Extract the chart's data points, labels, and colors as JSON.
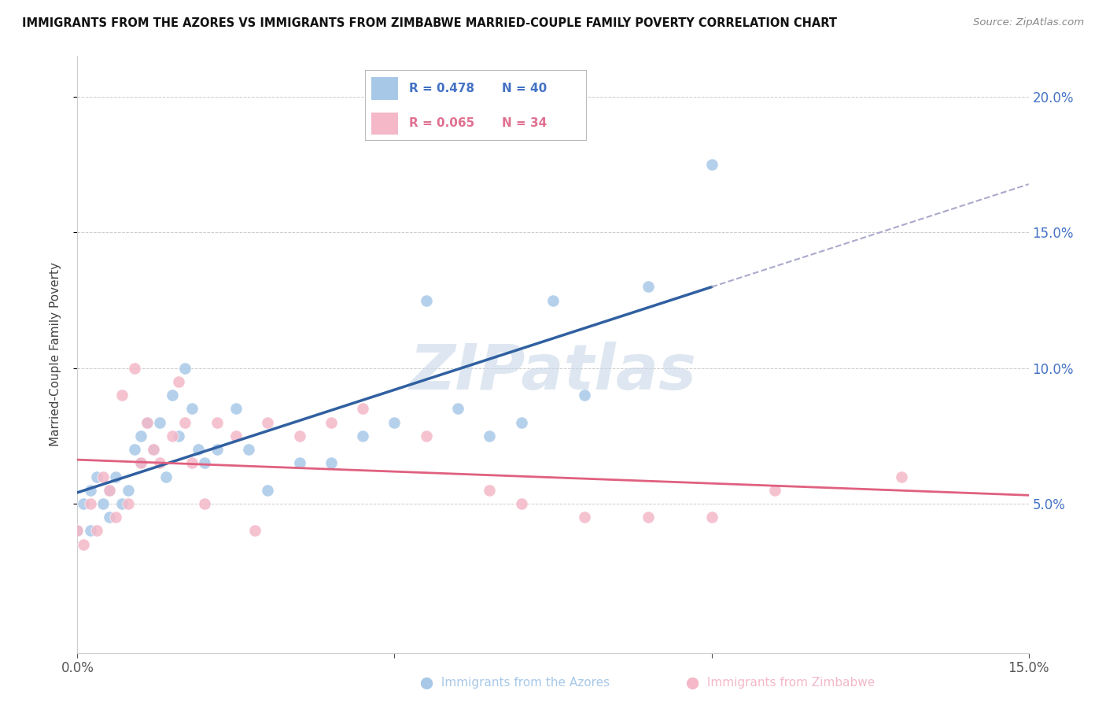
{
  "title": "IMMIGRANTS FROM THE AZORES VS IMMIGRANTS FROM ZIMBABWE MARRIED-COUPLE FAMILY POVERTY CORRELATION CHART",
  "source": "Source: ZipAtlas.com",
  "ylabel": "Married-Couple Family Poverty",
  "xlim": [
    0.0,
    0.15
  ],
  "ylim": [
    -0.005,
    0.215
  ],
  "xticks": [
    0.0,
    0.05,
    0.1,
    0.15
  ],
  "xtick_labels": [
    "0.0%",
    "",
    "",
    "15.0%"
  ],
  "yticks": [
    0.05,
    0.1,
    0.15,
    0.2
  ],
  "ytick_labels_right": [
    "5.0%",
    "10.0%",
    "15.0%",
    "20.0%"
  ],
  "azores_color": "#a8c8e8",
  "zimbabwe_color": "#f4b8c8",
  "azores_line_color": "#3060a0",
  "zimbabwe_line_color": "#e06080",
  "azores_R": 0.478,
  "azores_N": 40,
  "zimbabwe_R": 0.065,
  "zimbabwe_N": 34,
  "grid_color": "#cccccc",
  "azores_x": [
    0.0,
    0.001,
    0.002,
    0.002,
    0.003,
    0.004,
    0.005,
    0.005,
    0.006,
    0.007,
    0.008,
    0.009,
    0.01,
    0.01,
    0.011,
    0.012,
    0.013,
    0.014,
    0.015,
    0.016,
    0.017,
    0.018,
    0.019,
    0.02,
    0.022,
    0.025,
    0.027,
    0.03,
    0.035,
    0.04,
    0.045,
    0.05,
    0.055,
    0.06,
    0.065,
    0.07,
    0.075,
    0.08,
    0.09,
    0.1
  ],
  "azores_y": [
    0.04,
    0.05,
    0.04,
    0.055,
    0.06,
    0.05,
    0.045,
    0.055,
    0.06,
    0.05,
    0.055,
    0.07,
    0.065,
    0.075,
    0.08,
    0.07,
    0.08,
    0.06,
    0.09,
    0.075,
    0.1,
    0.085,
    0.07,
    0.065,
    0.07,
    0.085,
    0.07,
    0.055,
    0.065,
    0.065,
    0.075,
    0.08,
    0.125,
    0.085,
    0.075,
    0.08,
    0.125,
    0.09,
    0.13,
    0.175
  ],
  "zimbabwe_x": [
    0.0,
    0.001,
    0.002,
    0.003,
    0.004,
    0.005,
    0.006,
    0.007,
    0.008,
    0.009,
    0.01,
    0.011,
    0.012,
    0.013,
    0.015,
    0.016,
    0.017,
    0.018,
    0.02,
    0.022,
    0.025,
    0.028,
    0.03,
    0.035,
    0.04,
    0.045,
    0.055,
    0.065,
    0.07,
    0.08,
    0.09,
    0.1,
    0.11,
    0.13
  ],
  "zimbabwe_y": [
    0.04,
    0.035,
    0.05,
    0.04,
    0.06,
    0.055,
    0.045,
    0.09,
    0.05,
    0.1,
    0.065,
    0.08,
    0.07,
    0.065,
    0.075,
    0.095,
    0.08,
    0.065,
    0.05,
    0.08,
    0.075,
    0.04,
    0.08,
    0.075,
    0.08,
    0.085,
    0.075,
    0.055,
    0.05,
    0.045,
    0.045,
    0.045,
    0.055,
    0.06
  ],
  "legend_azores_text": "R = 0.478   N = 40",
  "legend_zimbabwe_text": "R = 0.065   N = 34",
  "legend_color_azores": "#4472c4",
  "legend_color_zimbabwe": "#e07090",
  "bottom_label_azores": "Immigrants from the Azores",
  "bottom_label_zimbabwe": "Immigrants from Zimbabwe"
}
